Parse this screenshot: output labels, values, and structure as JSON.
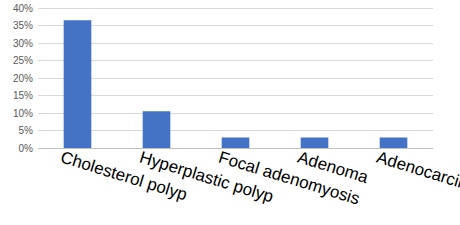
{
  "chart_data": {
    "type": "bar",
    "categories": [
      "Cholesterol polyp",
      "Hyperplastic polyp",
      "Focal adenomyosis",
      "Adenoma",
      "Adenocarcinoma"
    ],
    "values": [
      36.5,
      10.5,
      3,
      3,
      3
    ],
    "color": "#4472c4",
    "ylim": [
      0,
      40
    ],
    "yticks": [
      {
        "value": 0,
        "label": "0%"
      },
      {
        "value": 5,
        "label": "5%"
      },
      {
        "value": 10,
        "label": "10%"
      },
      {
        "value": 15,
        "label": "15%"
      },
      {
        "value": 20,
        "label": "20%"
      },
      {
        "value": 25,
        "label": "25%"
      },
      {
        "value": 30,
        "label": "30%"
      },
      {
        "value": 35,
        "label": "35%"
      },
      {
        "value": 40,
        "label": "40%"
      }
    ],
    "grid": true
  }
}
